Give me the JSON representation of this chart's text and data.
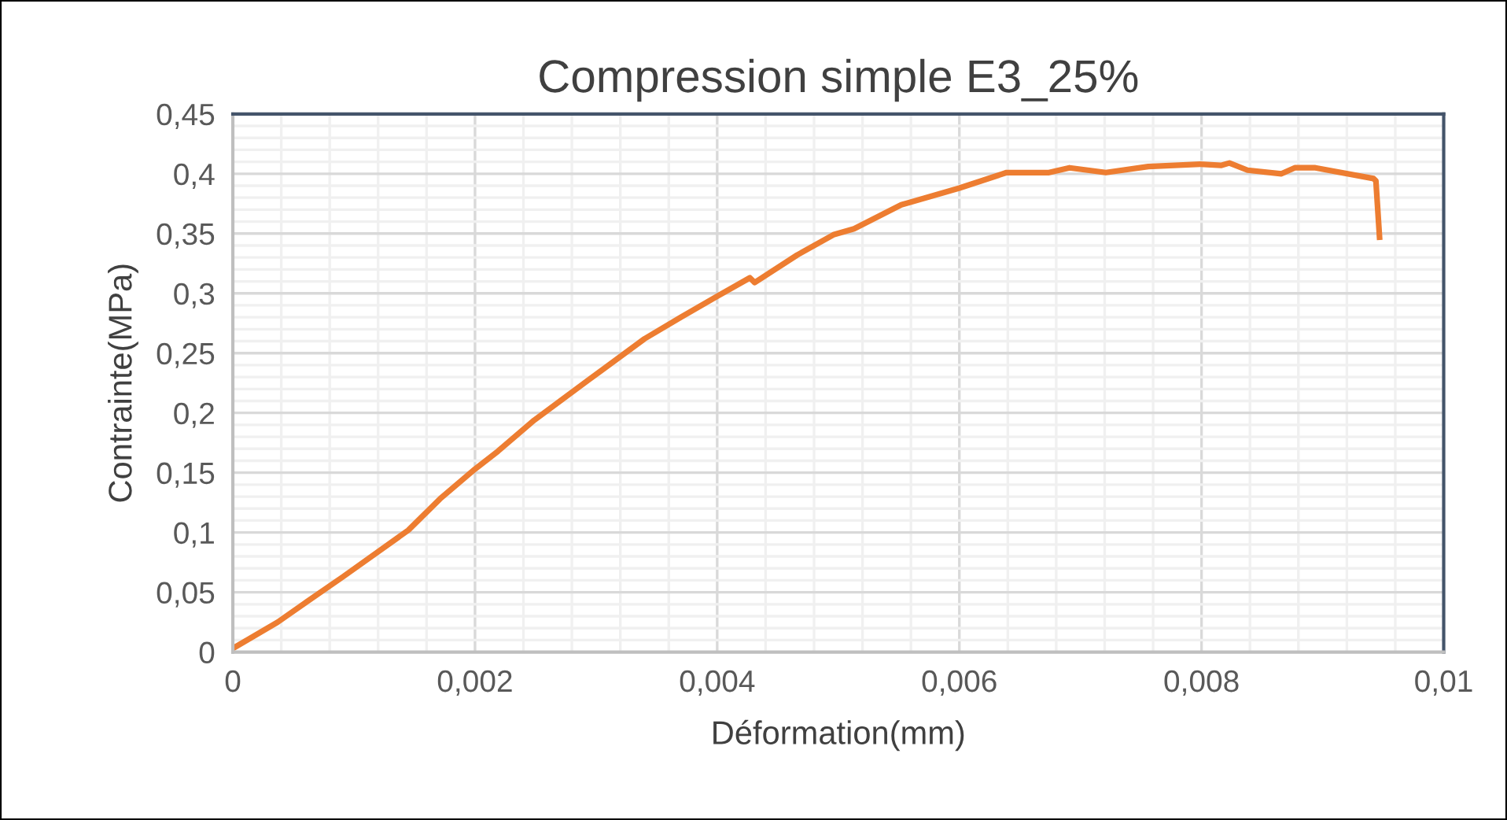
{
  "chart_data": {
    "type": "line",
    "title": "Compression simple E3_25%",
    "xlabel": "Déformation(mm)",
    "ylabel": "Contrainte(MPa)",
    "x": [
      0,
      0.00037,
      0.00061,
      0.00091,
      0.00145,
      0.00171,
      0.002,
      0.00219,
      0.00249,
      0.00293,
      0.0034,
      0.0037,
      0.00399,
      0.00427,
      0.00431,
      0.00466,
      0.00496,
      0.00513,
      0.00552,
      0.006,
      0.00639,
      0.00674,
      0.00691,
      0.00721,
      0.00756,
      0.00799,
      0.00816,
      0.00823,
      0.00838,
      0.00866,
      0.00877,
      0.00894,
      0.00942,
      0.00944,
      0.00947
    ],
    "series": [
      {
        "color": "#ed7d31",
        "values": [
          0.003,
          0.025,
          0.042,
          0.063,
          0.102,
          0.128,
          0.153,
          0.168,
          0.194,
          0.227,
          0.262,
          0.28,
          0.297,
          0.313,
          0.309,
          0.332,
          0.349,
          0.354,
          0.374,
          0.388,
          0.401,
          0.401,
          0.405,
          0.401,
          0.406,
          0.408,
          0.407,
          0.409,
          0.403,
          0.4,
          0.405,
          0.405,
          0.396,
          0.394,
          0.347
        ]
      }
    ],
    "xlim": [
      0,
      0.01
    ],
    "ylim": [
      0,
      0.45
    ],
    "xticks": [
      0,
      {
        "value": 0.002,
        "label": "0,002"
      },
      {
        "value": 0.004,
        "label": "0,004"
      },
      {
        "value": 0.006,
        "label": "0,006"
      },
      {
        "value": 0.008,
        "label": "0,008"
      },
      {
        "value": 0.01,
        "label": "0,01"
      }
    ],
    "yticks": [
      0,
      {
        "value": 0.05,
        "label": "0,05"
      },
      {
        "value": 0.1,
        "label": "0,1"
      },
      {
        "value": 0.15,
        "label": "0,15"
      },
      {
        "value": 0.2,
        "label": "0,2"
      },
      {
        "value": 0.25,
        "label": "0,25"
      },
      {
        "value": 0.3,
        "label": "0,3"
      },
      {
        "value": 0.35,
        "label": "0,35"
      },
      {
        "value": 0.4,
        "label": "0,4"
      },
      {
        "value": 0.45,
        "label": "0,45"
      }
    ],
    "grid": true,
    "marker": "none",
    "line_style": "solid"
  }
}
